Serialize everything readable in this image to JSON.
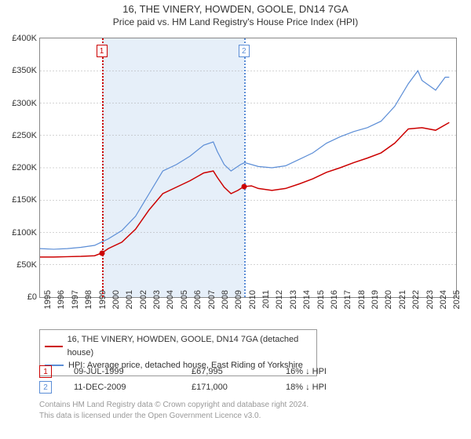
{
  "title_line1": "16, THE VINERY, HOWDEN, GOOLE, DN14 7GA",
  "title_line2": "Price paid vs. HM Land Registry's House Price Index (HPI)",
  "chart": {
    "type": "line",
    "bg": "#ffffff",
    "border": "#888888",
    "x_range": [
      1995,
      2025.5
    ],
    "y_range": [
      0,
      400000
    ],
    "y_ticks": [
      0,
      50000,
      100000,
      150000,
      200000,
      250000,
      300000,
      350000,
      400000
    ],
    "y_tick_labels": [
      "£0",
      "£50K",
      "£100K",
      "£150K",
      "£200K",
      "£250K",
      "£300K",
      "£350K",
      "£400K"
    ],
    "x_ticks": [
      1995,
      1996,
      1997,
      1998,
      1999,
      2000,
      2001,
      2002,
      2003,
      2004,
      2005,
      2006,
      2007,
      2008,
      2009,
      2010,
      2011,
      2012,
      2013,
      2014,
      2015,
      2016,
      2017,
      2018,
      2019,
      2020,
      2021,
      2022,
      2023,
      2024,
      2025
    ],
    "gridline_color": "#aaaaaa",
    "xlabel_fontsize": 11,
    "ylabel_fontsize": 11,
    "shade_color": "#e6eff9",
    "shade_range": [
      1999.52,
      2009.95
    ],
    "events": [
      {
        "n": "1",
        "x": 1999.52,
        "color": "#cc0000",
        "vline_color": "#cc0000"
      },
      {
        "n": "2",
        "x": 2009.95,
        "color": "#5b8dd6",
        "vline_color": "#5b8dd6"
      }
    ],
    "series": [
      {
        "name": "price_paid",
        "color": "#cc0000",
        "width": 1.5,
        "data": [
          [
            1995,
            62000
          ],
          [
            1996,
            62000
          ],
          [
            1997,
            62500
          ],
          [
            1998,
            63000
          ],
          [
            1999,
            64000
          ],
          [
            1999.52,
            67995
          ],
          [
            2000,
            75000
          ],
          [
            2001,
            85000
          ],
          [
            2002,
            105000
          ],
          [
            2003,
            135000
          ],
          [
            2004,
            160000
          ],
          [
            2005,
            170000
          ],
          [
            2006,
            180000
          ],
          [
            2007,
            192000
          ],
          [
            2007.7,
            195000
          ],
          [
            2008,
            185000
          ],
          [
            2008.5,
            170000
          ],
          [
            2009,
            160000
          ],
          [
            2009.5,
            165000
          ],
          [
            2009.95,
            171000
          ],
          [
            2010.5,
            172000
          ],
          [
            2011,
            168000
          ],
          [
            2012,
            165000
          ],
          [
            2013,
            168000
          ],
          [
            2014,
            175000
          ],
          [
            2015,
            183000
          ],
          [
            2016,
            193000
          ],
          [
            2017,
            200000
          ],
          [
            2018,
            208000
          ],
          [
            2019,
            215000
          ],
          [
            2020,
            223000
          ],
          [
            2021,
            238000
          ],
          [
            2022,
            260000
          ],
          [
            2023,
            262000
          ],
          [
            2024,
            258000
          ],
          [
            2025,
            270000
          ]
        ]
      },
      {
        "name": "hpi",
        "color": "#5b8dd6",
        "width": 1.2,
        "data": [
          [
            1995,
            75000
          ],
          [
            1996,
            74000
          ],
          [
            1997,
            75000
          ],
          [
            1998,
            77000
          ],
          [
            1999,
            80000
          ],
          [
            2000,
            90000
          ],
          [
            2001,
            103000
          ],
          [
            2002,
            125000
          ],
          [
            2003,
            160000
          ],
          [
            2004,
            195000
          ],
          [
            2005,
            205000
          ],
          [
            2006,
            218000
          ],
          [
            2007,
            235000
          ],
          [
            2007.7,
            240000
          ],
          [
            2008,
            225000
          ],
          [
            2008.5,
            205000
          ],
          [
            2009,
            195000
          ],
          [
            2009.7,
            205000
          ],
          [
            2010,
            208000
          ],
          [
            2011,
            202000
          ],
          [
            2012,
            200000
          ],
          [
            2013,
            203000
          ],
          [
            2014,
            213000
          ],
          [
            2015,
            223000
          ],
          [
            2016,
            238000
          ],
          [
            2017,
            248000
          ],
          [
            2018,
            256000
          ],
          [
            2019,
            262000
          ],
          [
            2020,
            272000
          ],
          [
            2021,
            295000
          ],
          [
            2022,
            330000
          ],
          [
            2022.7,
            350000
          ],
          [
            2023,
            335000
          ],
          [
            2024,
            320000
          ],
          [
            2024.7,
            340000
          ],
          [
            2025,
            340000
          ]
        ]
      }
    ],
    "markers": [
      {
        "series": 0,
        "x": 1999.52,
        "y": 67995
      },
      {
        "series": 0,
        "x": 2009.95,
        "y": 171000
      }
    ]
  },
  "legend": {
    "border": "#999999",
    "items": [
      {
        "color": "#cc0000",
        "label": "16, THE VINERY, HOWDEN, GOOLE, DN14 7GA (detached house)"
      },
      {
        "color": "#5b8dd6",
        "label": "HPI: Average price, detached house, East Riding of Yorkshire"
      }
    ]
  },
  "transactions": [
    {
      "n": "1",
      "color": "#cc0000",
      "date": "09-JUL-1999",
      "price": "£67,995",
      "diff": "16% ↓ HPI"
    },
    {
      "n": "2",
      "color": "#5b8dd6",
      "date": "11-DEC-2009",
      "price": "£171,000",
      "diff": "18% ↓ HPI"
    }
  ],
  "credits_line1": "Contains HM Land Registry data © Crown copyright and database right 2024.",
  "credits_line2": "This data is licensed under the Open Government Licence v3.0."
}
